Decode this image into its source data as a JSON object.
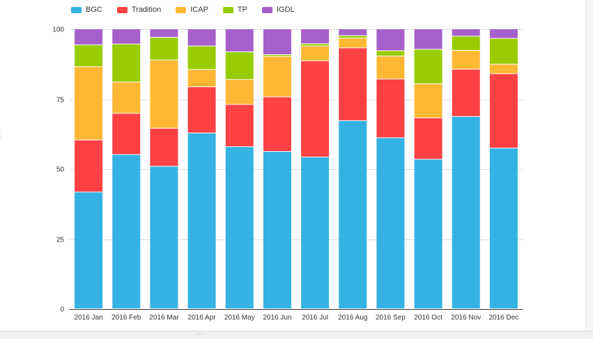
{
  "chart_data": {
    "type": "bar",
    "stacked": true,
    "categories": [
      "2016 Jan",
      "2016 Feb",
      "2016 Mar",
      "2016 Apr",
      "2016 May",
      "2016 Jun",
      "2016 Jul",
      "2016 Aug",
      "2016 Sep",
      "2016 Oct",
      "2016 Nov",
      "2016 Dec"
    ],
    "series": [
      {
        "name": "BGC",
        "color": "#33b2e3",
        "values": [
          41.7,
          55.1,
          50.9,
          62.8,
          57.9,
          56.2,
          54.2,
          67.2,
          61.1,
          53.4,
          68.7,
          57.4
        ]
      },
      {
        "name": "Tradition",
        "color": "#ff4144",
        "values": [
          18.6,
          14.7,
          13.6,
          16.5,
          15.1,
          19.5,
          34.4,
          26.0,
          21.0,
          14.8,
          16.9,
          26.6
        ]
      },
      {
        "name": "ICAP",
        "color": "#ffb834",
        "values": [
          26.2,
          11.2,
          24.4,
          6.2,
          8.9,
          14.5,
          5.3,
          3.5,
          8.2,
          12.2,
          6.7,
          3.4
        ]
      },
      {
        "name": "TP",
        "color": "#99cc00",
        "values": [
          7.8,
          13.6,
          8.1,
          8.4,
          9.9,
          0.6,
          0.8,
          0.9,
          1.9,
          12.3,
          5.1,
          9.2
        ]
      },
      {
        "name": "IGDL",
        "color": "#a660cc",
        "values": [
          5.7,
          5.4,
          3.0,
          6.1,
          8.2,
          9.2,
          5.3,
          2.4,
          7.8,
          7.3,
          2.6,
          3.4
        ]
      }
    ],
    "y_ticks": [
      "0",
      "25",
      "50",
      "75",
      "100"
    ],
    "ylim": [
      0,
      100
    ],
    "grid": true,
    "legend_position": "top-left"
  }
}
